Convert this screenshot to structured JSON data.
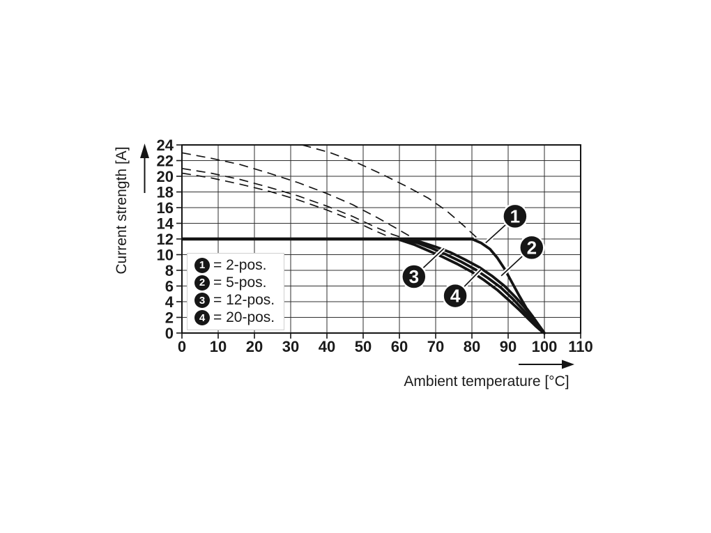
{
  "page": {
    "background": "#ffffff"
  },
  "colors": {
    "ink": "#1a1a1a",
    "line": "#141414",
    "grid": "#2e2e2e",
    "marker_fill": "#161616",
    "marker_text": "#ffffff",
    "legend_bg": "#ffffff"
  },
  "chart_data": {
    "type": "line",
    "title": "",
    "xlabel": "Ambient temperature [°C]",
    "ylabel": "Current strength [A]",
    "xlim": [
      0,
      110
    ],
    "ylim": [
      0,
      24
    ],
    "x_ticks": [
      0,
      10,
      20,
      30,
      40,
      50,
      60,
      70,
      80,
      90,
      100,
      110
    ],
    "y_ticks": [
      0,
      2,
      4,
      6,
      8,
      10,
      12,
      14,
      16,
      18,
      20,
      22,
      24
    ],
    "grid": true,
    "legend_position": "inside lower-left",
    "rated_line": {
      "value": 12,
      "x_from": 0,
      "x_to": 80.5
    },
    "series": [
      {
        "id": "capacity-2pos",
        "name": "2-pos. (dashed capacity)",
        "style": "dashed",
        "points": [
          [
            33.2,
            24
          ],
          [
            41,
            23.0
          ],
          [
            48,
            21.8
          ],
          [
            55,
            20.3
          ],
          [
            62,
            18.7
          ],
          [
            68,
            17.2
          ],
          [
            73,
            15.6
          ],
          [
            77.5,
            13.8
          ],
          [
            81.5,
            12.1
          ]
        ]
      },
      {
        "id": "capacity-5pos",
        "name": "5-pos. (dashed capacity)",
        "style": "dashed",
        "points": [
          [
            0,
            23.0
          ],
          [
            8,
            22.3
          ],
          [
            16,
            21.5
          ],
          [
            24,
            20.4
          ],
          [
            32,
            19.2
          ],
          [
            40,
            17.8
          ],
          [
            47,
            16.4
          ],
          [
            54,
            14.7
          ],
          [
            59,
            13.4
          ],
          [
            63.5,
            12.2
          ]
        ]
      },
      {
        "id": "capacity-12pos",
        "name": "12-pos. (dashed capacity)",
        "style": "dashed",
        "points": [
          [
            0,
            21.0
          ],
          [
            8,
            20.4
          ],
          [
            16,
            19.6
          ],
          [
            24,
            18.6
          ],
          [
            32,
            17.5
          ],
          [
            40,
            16.2
          ],
          [
            47,
            14.9
          ],
          [
            53,
            13.6
          ],
          [
            58,
            12.6
          ],
          [
            62.5,
            11.9
          ]
        ]
      },
      {
        "id": "capacity-20pos",
        "name": "20-pos. (dashed capacity)",
        "style": "dashed",
        "points": [
          [
            0,
            20.4
          ],
          [
            8,
            19.8
          ],
          [
            16,
            19.0
          ],
          [
            24,
            18.1
          ],
          [
            32,
            17.0
          ],
          [
            40,
            15.7
          ],
          [
            47,
            14.4
          ],
          [
            53,
            13.1
          ],
          [
            58,
            12.1
          ],
          [
            61.5,
            11.7
          ]
        ]
      },
      {
        "id": "derated-2pos",
        "name": "2-pos.",
        "style": "solid",
        "points": [
          [
            80,
            12
          ],
          [
            82.5,
            11.5
          ],
          [
            85,
            10.7
          ],
          [
            87,
            9.6
          ],
          [
            89,
            8.2
          ],
          [
            91,
            6.5
          ],
          [
            93,
            4.8
          ],
          [
            95,
            3.2
          ],
          [
            96.8,
            2.1
          ],
          [
            98.3,
            1.1
          ],
          [
            99.4,
            0.4
          ],
          [
            100,
            0
          ]
        ]
      },
      {
        "id": "derated-5pos",
        "name": "5-pos.",
        "style": "solid",
        "points": [
          [
            62,
            12
          ],
          [
            66,
            11.6
          ],
          [
            70,
            11.0
          ],
          [
            74,
            10.3
          ],
          [
            78,
            9.4
          ],
          [
            82,
            8.4
          ],
          [
            85.5,
            7.3
          ],
          [
            89,
            6.0
          ],
          [
            92,
            4.6
          ],
          [
            94.5,
            3.3
          ],
          [
            96.6,
            2.1
          ],
          [
            98.4,
            1.0
          ],
          [
            99.5,
            0.3
          ],
          [
            100,
            0
          ]
        ]
      },
      {
        "id": "derated-12pos",
        "name": "12-pos.",
        "style": "solid",
        "points": [
          [
            61,
            12
          ],
          [
            65,
            11.5
          ],
          [
            69,
            10.8
          ],
          [
            73,
            10.0
          ],
          [
            77,
            9.1
          ],
          [
            81,
            8.1
          ],
          [
            84.5,
            7.0
          ],
          [
            88,
            5.8
          ],
          [
            91.2,
            4.4
          ],
          [
            93.8,
            3.1
          ],
          [
            96,
            2.0
          ],
          [
            98,
            0.9
          ],
          [
            99.4,
            0.2
          ],
          [
            100,
            0
          ]
        ]
      },
      {
        "id": "derated-20pos",
        "name": "20-pos.",
        "style": "solid",
        "points": [
          [
            60,
            11.9
          ],
          [
            64,
            11.3
          ],
          [
            68,
            10.5
          ],
          [
            72,
            9.7
          ],
          [
            76,
            8.8
          ],
          [
            80,
            7.8
          ],
          [
            83.5,
            6.7
          ],
          [
            87,
            5.5
          ],
          [
            90.4,
            4.1
          ],
          [
            93.2,
            2.9
          ],
          [
            95.6,
            1.8
          ],
          [
            97.8,
            0.8
          ],
          [
            99.3,
            0.2
          ],
          [
            100,
            0
          ]
        ]
      }
    ],
    "annotations": [
      {
        "num": "1",
        "series": "2-pos.",
        "circle": {
          "x": 91.9,
          "y": 14.9
        },
        "pointer": {
          "x": 83.8,
          "y": 11.5
        }
      },
      {
        "num": "2",
        "series": "5-pos.",
        "circle": {
          "x": 96.5,
          "y": 10.9
        },
        "pointer": {
          "x": 88.1,
          "y": 7.3
        }
      },
      {
        "num": "3",
        "series": "12-pos.",
        "circle": {
          "x": 64.0,
          "y": 7.2
        },
        "pointer": {
          "x": 72.3,
          "y": 10.8
        }
      },
      {
        "num": "4",
        "series": "20-pos.",
        "circle": {
          "x": 75.4,
          "y": 4.75
        },
        "pointer": {
          "x": 82.5,
          "y": 8.1
        }
      }
    ]
  },
  "legend": {
    "items": [
      {
        "num": "1",
        "label": "= 2-pos."
      },
      {
        "num": "2",
        "label": "= 5-pos."
      },
      {
        "num": "3",
        "label": "= 12-pos."
      },
      {
        "num": "4",
        "label": "= 20-pos."
      }
    ]
  }
}
